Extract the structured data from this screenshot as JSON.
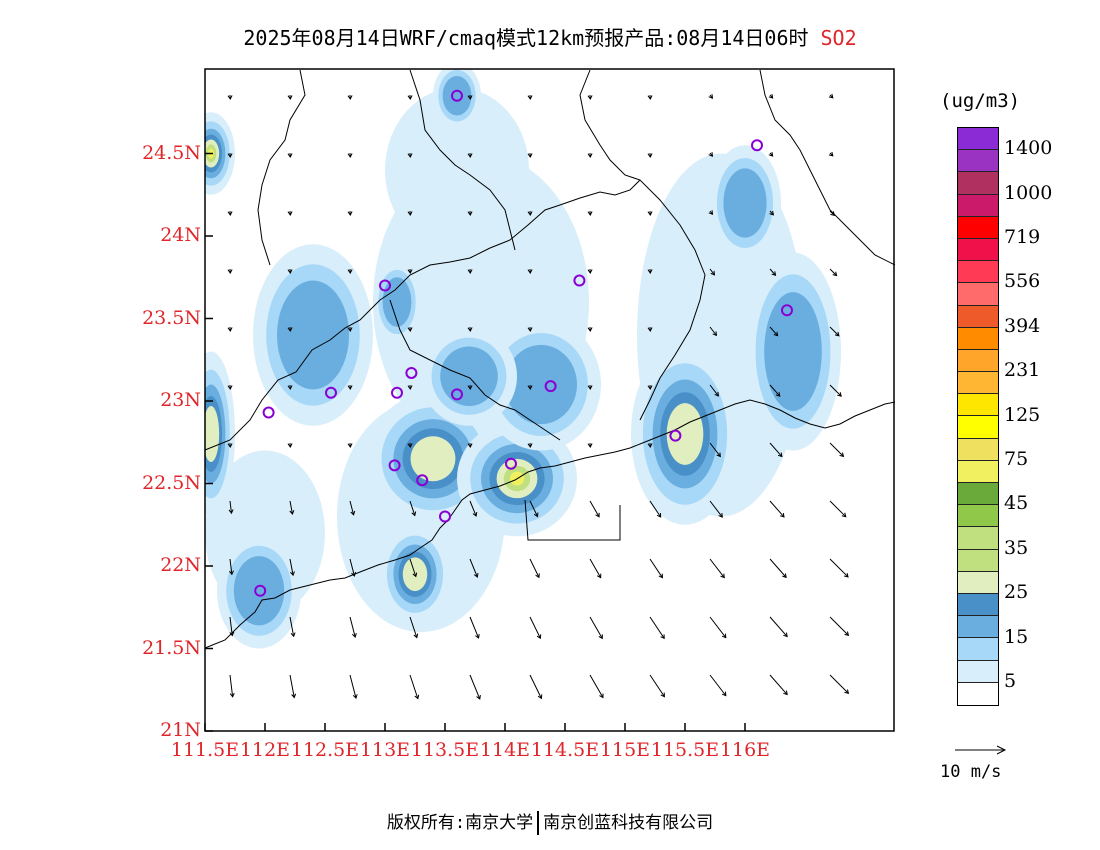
{
  "title": {
    "main": "2025年08月14日WRF/cmaq模式12km预报产品:08月14日06时",
    "species": "SO2"
  },
  "axes": {
    "lat_labels": [
      "24.5N",
      "24N",
      "23.5N",
      "23N",
      "22.5N",
      "22N",
      "21.5N",
      "21N"
    ],
    "lon_labels": [
      "111.5E",
      "112E",
      "112.5E",
      "113E",
      "113.5E",
      "114E",
      "114.5E",
      "115E",
      "115.5E",
      "116E"
    ]
  },
  "legend": {
    "unit": "(ug/m3)",
    "levels": [
      "1400",
      "1000",
      "719",
      "556",
      "394",
      "231",
      "125",
      "75",
      "45",
      "35",
      "25",
      "15",
      "5"
    ],
    "colors": [
      "#8a2bd6",
      "#9b33c2",
      "#b03060",
      "#cc1a6b",
      "#ff0000",
      "#f0104a",
      "#ff3a55",
      "#ff6a6a",
      "#ee5a2a",
      "#ff8c00",
      "#ffa52a",
      "#ffb733",
      "#ffe600",
      "#ffff00",
      "#f0e060",
      "#f0f060",
      "#6aaa3a",
      "#90c84a",
      "#c0e080",
      "#c0e080",
      "#e0eec0",
      "#4a90c8",
      "#6aaee0",
      "#a8d8f8",
      "#d8eefa",
      "#ffffff"
    ]
  },
  "wind_reference": "10 m/s",
  "footer": {
    "left": "版权所有:南京大学",
    "right": "南京创蓝科技有限公司"
  },
  "stations": [
    {
      "lon": 113.6,
      "lat": 24.85
    },
    {
      "lon": 116.1,
      "lat": 24.55
    },
    {
      "lon": 114.62,
      "lat": 23.73
    },
    {
      "lon": 113.0,
      "lat": 23.7
    },
    {
      "lon": 116.35,
      "lat": 23.55
    },
    {
      "lon": 113.22,
      "lat": 23.17
    },
    {
      "lon": 112.55,
      "lat": 23.05
    },
    {
      "lon": 113.1,
      "lat": 23.05
    },
    {
      "lon": 113.6,
      "lat": 23.04
    },
    {
      "lon": 114.38,
      "lat": 23.09
    },
    {
      "lon": 112.03,
      "lat": 22.93
    },
    {
      "lon": 115.42,
      "lat": 22.79
    },
    {
      "lon": 113.08,
      "lat": 22.61
    },
    {
      "lon": 113.31,
      "lat": 22.52
    },
    {
      "lon": 114.05,
      "lat": 22.62
    },
    {
      "lon": 113.5,
      "lat": 22.3
    },
    {
      "lon": 111.96,
      "lat": 21.85
    }
  ],
  "pollution_patches": [
    {
      "lon": 113.4,
      "lat": 22.65,
      "rx": 0.55,
      "ry": 0.4,
      "peak": 25
    },
    {
      "lon": 114.1,
      "lat": 22.53,
      "rx": 0.5,
      "ry": 0.35,
      "peak": 35
    },
    {
      "lon": 115.5,
      "lat": 22.8,
      "rx": 0.45,
      "ry": 0.55,
      "peak": 25
    },
    {
      "lon": 113.25,
      "lat": 21.95,
      "rx": 0.3,
      "ry": 0.3,
      "peak": 25
    },
    {
      "lon": 111.55,
      "lat": 24.5,
      "rx": 0.2,
      "ry": 0.25,
      "peak": 35
    },
    {
      "lon": 111.55,
      "lat": 22.8,
      "rx": 0.2,
      "ry": 0.5,
      "peak": 25
    },
    {
      "lon": 112.4,
      "lat": 23.4,
      "rx": 0.5,
      "ry": 0.55,
      "peak": 15
    },
    {
      "lon": 114.3,
      "lat": 23.1,
      "rx": 0.5,
      "ry": 0.4,
      "peak": 15
    },
    {
      "lon": 113.7,
      "lat": 23.15,
      "rx": 0.4,
      "ry": 0.3,
      "peak": 15
    },
    {
      "lon": 116.0,
      "lat": 24.2,
      "rx": 0.3,
      "ry": 0.35,
      "peak": 15
    },
    {
      "lon": 116.4,
      "lat": 23.3,
      "rx": 0.4,
      "ry": 0.6,
      "peak": 15
    },
    {
      "lon": 111.95,
      "lat": 21.85,
      "rx": 0.35,
      "ry": 0.35,
      "peak": 15
    },
    {
      "lon": 113.6,
      "lat": 24.85,
      "rx": 0.2,
      "ry": 0.2,
      "peak": 15
    },
    {
      "lon": 113.1,
      "lat": 23.6,
      "rx": 0.2,
      "ry": 0.25,
      "peak": 15
    }
  ]
}
